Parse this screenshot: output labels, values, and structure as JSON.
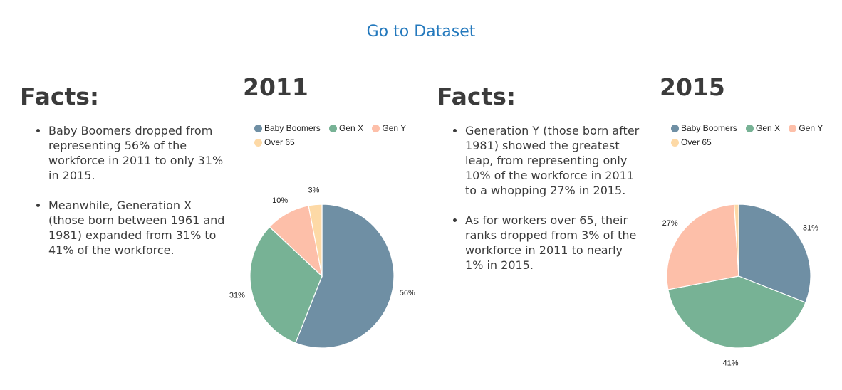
{
  "link": {
    "label": "Go to Dataset"
  },
  "left_facts": {
    "title": "Facts:",
    "bullets": [
      "Baby Boomers dropped from representing 56% of the workforce in 2011 to only 31% in 2015.",
      "Meanwhile, Generation X (those born between 1961 and 1981) expanded from 31% to 41% of the workforce."
    ]
  },
  "right_facts": {
    "title": "Facts:",
    "bullets": [
      "Generation Y (those born after 1981) showed the greatest leap, from representing only 10% of the workforce in 2011 to a whopping 27% in 2015.",
      "As for workers over 65, their ranks dropped from 3% of the workforce in 2011 to nearly 1% in 2015."
    ]
  },
  "colors": {
    "baby_boomers": "#6f8fa4",
    "gen_x": "#77b295",
    "gen_y": "#fdbfa9",
    "over_65": "#fdd9a6"
  },
  "chart_data": [
    {
      "type": "pie",
      "title": "2011",
      "categories": [
        "Baby Boomers",
        "Gen X",
        "Gen Y",
        "Over 65"
      ],
      "values": [
        56,
        31,
        10,
        3
      ],
      "labels": [
        "56%",
        "31%",
        "10%",
        "3%"
      ],
      "colors": [
        "#6f8fa4",
        "#77b295",
        "#fdbfa9",
        "#fdd9a6"
      ],
      "legend_position": "top"
    },
    {
      "type": "pie",
      "title": "2015",
      "categories": [
        "Baby Boomers",
        "Gen X",
        "Gen Y",
        "Over 65"
      ],
      "values": [
        31,
        41,
        27,
        1
      ],
      "labels": [
        "31%",
        "41%",
        "27%",
        ""
      ],
      "colors": [
        "#6f8fa4",
        "#77b295",
        "#fdbfa9",
        "#fdd9a6"
      ],
      "legend_position": "top"
    }
  ]
}
